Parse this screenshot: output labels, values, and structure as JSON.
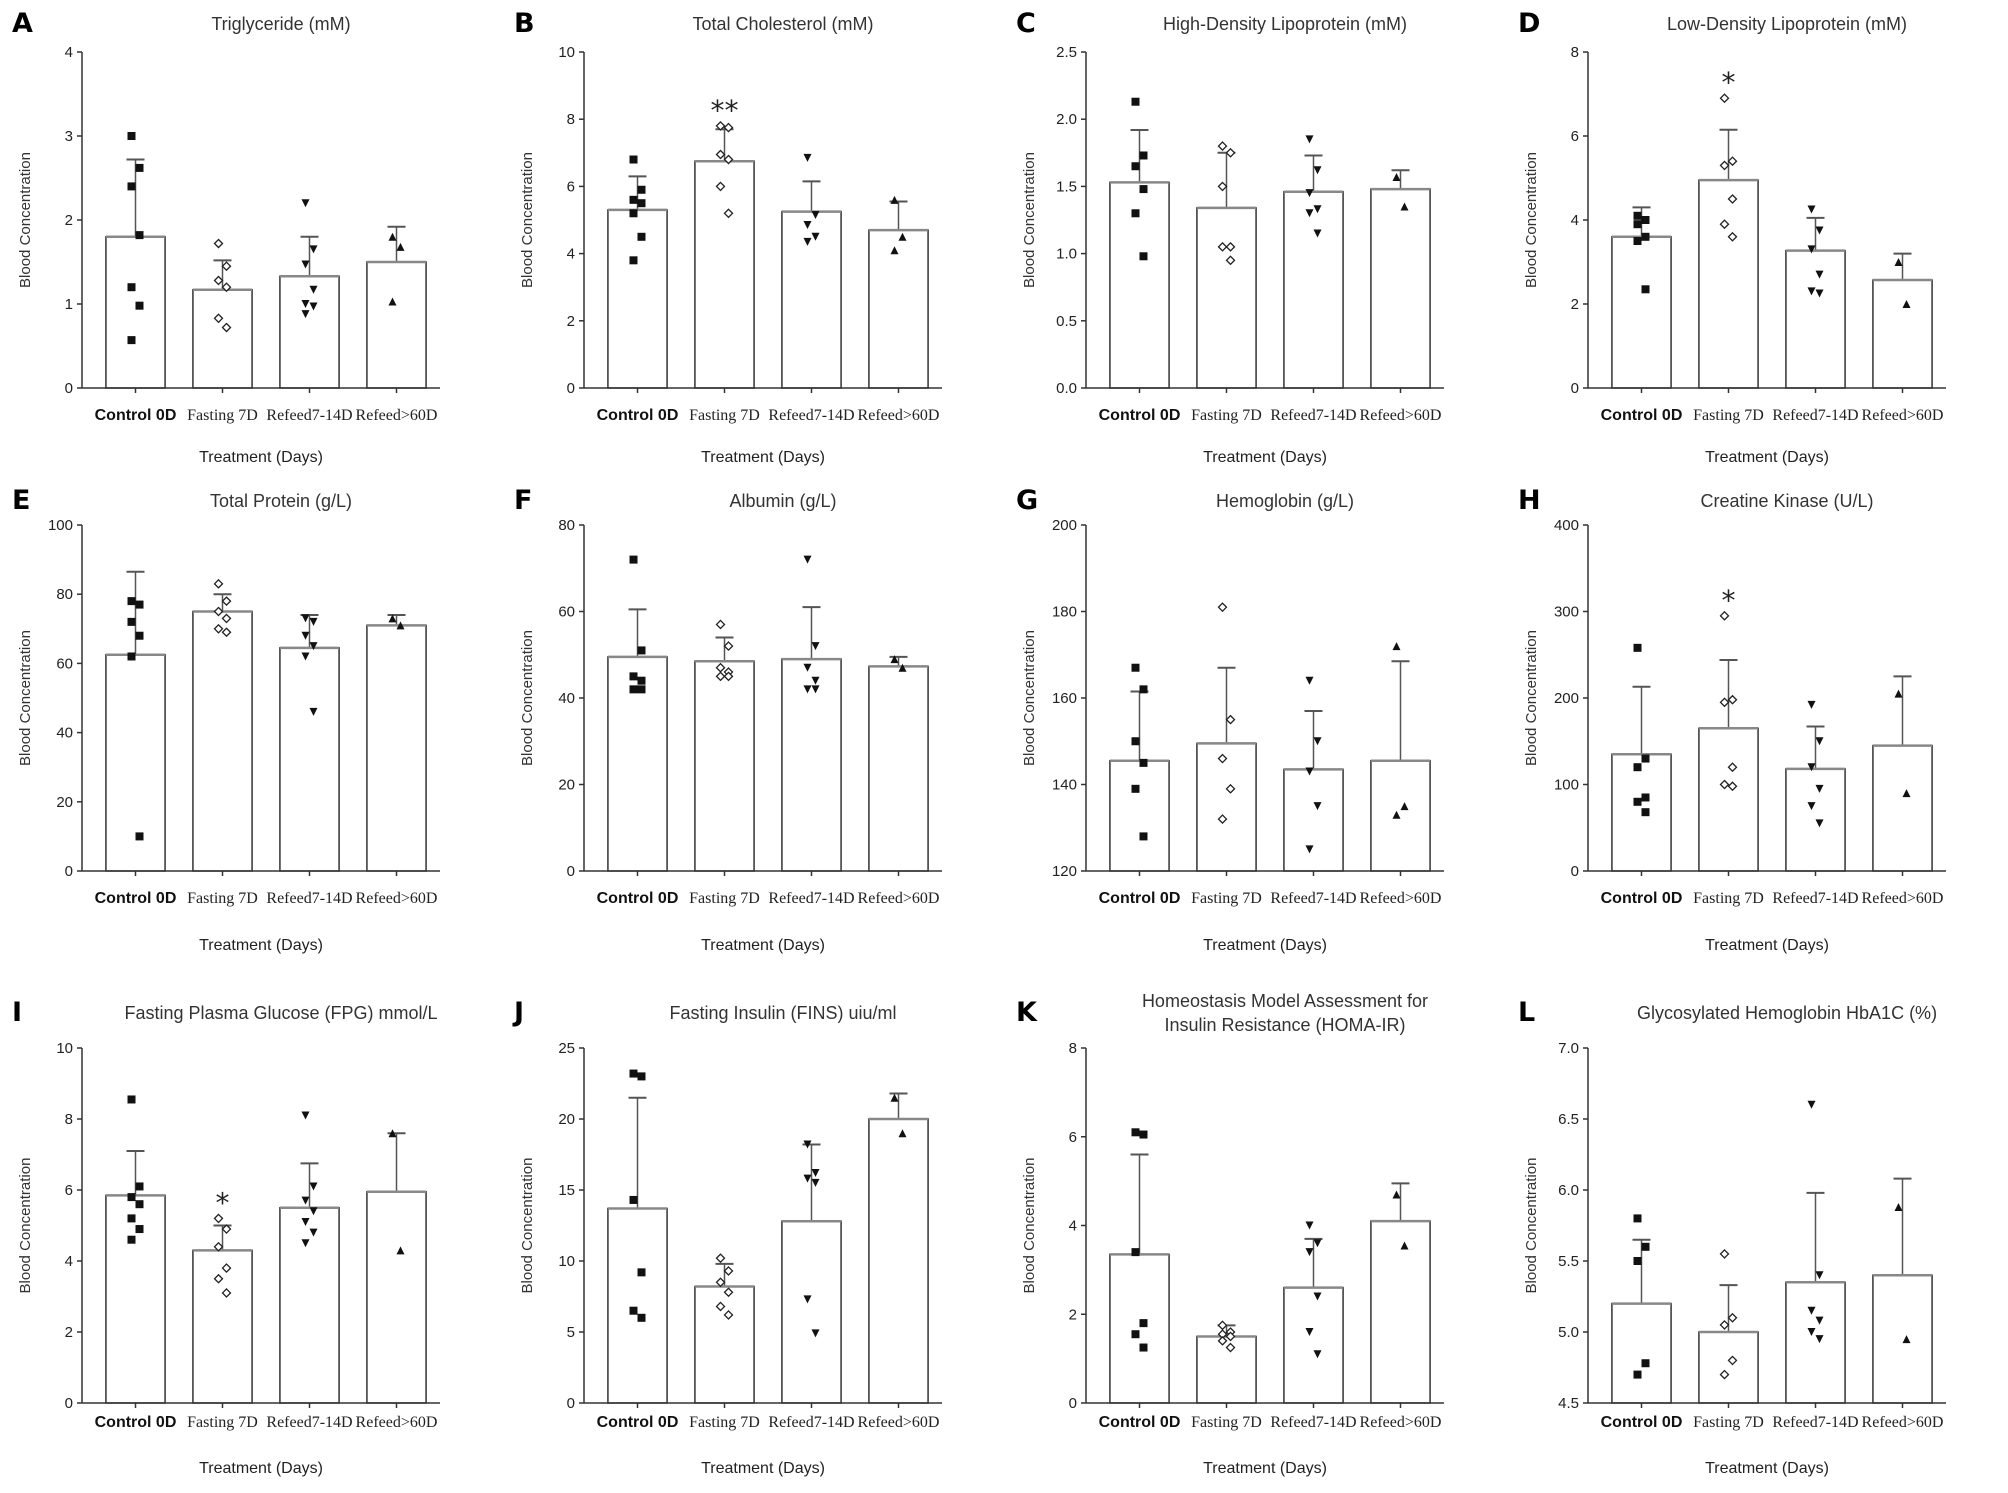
{
  "categories": [
    "Control 0D",
    "Fasting 7D",
    "Refeed7-14D",
    "Refeed>60D"
  ],
  "xlabel": "Treatment (Days)",
  "ylabel": "Blood Concentration",
  "chart_data": [
    {
      "letter": "A",
      "type": "bar",
      "title": [
        "Triglyceride (mM)"
      ],
      "ylim": [
        0,
        4
      ],
      "ticks": [
        "0",
        "1",
        "2",
        "3",
        "4"
      ],
      "means": [
        1.8,
        1.17,
        1.33,
        1.5
      ],
      "err_upper": [
        2.72,
        1.52,
        1.8,
        1.92
      ],
      "sig": [
        "",
        "",
        "",
        ""
      ],
      "points": [
        [
          3.0,
          2.62,
          2.4,
          1.82,
          1.2,
          0.98,
          0.57
        ],
        [
          1.72,
          1.45,
          1.28,
          1.2,
          0.83,
          0.72
        ],
        [
          2.2,
          1.65,
          1.47,
          1.17,
          1.0,
          0.97,
          0.88
        ],
        [
          1.8,
          1.68,
          1.03
        ]
      ]
    },
    {
      "letter": "B",
      "type": "bar",
      "title": [
        "Total Cholesterol (mM)"
      ],
      "ylim": [
        0,
        10
      ],
      "ticks": [
        "0",
        "2",
        "4",
        "6",
        "8",
        "10"
      ],
      "means": [
        5.3,
        6.75,
        5.25,
        4.7
      ],
      "err_upper": [
        6.3,
        7.7,
        6.15,
        5.55
      ],
      "sig": [
        "",
        "**",
        "",
        ""
      ],
      "points": [
        [
          6.8,
          5.9,
          5.6,
          5.5,
          5.2,
          4.5,
          3.8
        ],
        [
          7.8,
          7.75,
          6.95,
          6.8,
          6.0,
          5.2
        ],
        [
          6.85,
          5.15,
          4.85,
          4.5,
          4.35
        ],
        [
          5.6,
          4.5,
          4.1
        ]
      ]
    },
    {
      "letter": "C",
      "type": "bar",
      "title": [
        "High-Density Lipoprotein (mM)"
      ],
      "ylim": [
        0,
        2.5
      ],
      "ticks": [
        "0.0",
        "0.5",
        "1.0",
        "1.5",
        "2.0",
        "2.5"
      ],
      "means": [
        1.53,
        1.34,
        1.46,
        1.48
      ],
      "err_upper": [
        1.92,
        1.75,
        1.73,
        1.62
      ],
      "sig": [
        "",
        "",
        "",
        ""
      ],
      "points": [
        [
          2.13,
          1.73,
          1.65,
          1.48,
          1.3,
          0.98
        ],
        [
          1.8,
          1.75,
          1.5,
          1.05,
          1.05,
          0.95
        ],
        [
          1.85,
          1.62,
          1.45,
          1.33,
          1.3,
          1.15
        ],
        [
          1.57,
          1.35
        ]
      ]
    },
    {
      "letter": "D",
      "type": "bar",
      "title": [
        "Low-Density Lipoprotein (mM)"
      ],
      "ylim": [
        0,
        8
      ],
      "ticks": [
        "0",
        "2",
        "4",
        "6",
        "8"
      ],
      "means": [
        3.6,
        4.95,
        3.27,
        2.57
      ],
      "err_upper": [
        4.3,
        6.15,
        4.05,
        3.2
      ],
      "sig": [
        "",
        "*",
        "",
        ""
      ],
      "points": [
        [
          4.1,
          4.0,
          3.9,
          3.6,
          3.5,
          2.35
        ],
        [
          6.9,
          5.4,
          5.3,
          4.5,
          3.9,
          3.6
        ],
        [
          4.25,
          3.75,
          3.3,
          2.7,
          2.3,
          2.25
        ],
        [
          3.0,
          2.0
        ]
      ]
    },
    {
      "letter": "E",
      "type": "bar",
      "title": [
        "Total Protein (g/L)"
      ],
      "ylim": [
        0,
        100
      ],
      "ticks": [
        "0",
        "20",
        "40",
        "60",
        "80",
        "100"
      ],
      "means": [
        62.5,
        75,
        64.5,
        71
      ],
      "err_upper": [
        86.5,
        80,
        74,
        74
      ],
      "sig": [
        "",
        "",
        "",
        ""
      ],
      "points": [
        [
          78,
          77,
          72,
          68,
          62,
          10
        ],
        [
          83,
          78,
          75,
          73,
          70,
          69
        ],
        [
          73,
          72,
          68,
          65,
          62,
          46
        ],
        [
          73,
          71
        ]
      ]
    },
    {
      "letter": "F",
      "type": "bar",
      "title": [
        "Albumin (g/L)"
      ],
      "ylim": [
        0,
        80
      ],
      "ticks": [
        "0",
        "20",
        "40",
        "60",
        "80"
      ],
      "means": [
        49.5,
        48.5,
        49,
        47.3
      ],
      "err_upper": [
        60.5,
        54,
        61,
        49.5
      ],
      "sig": [
        "",
        "",
        "",
        ""
      ],
      "points": [
        [
          72,
          51,
          45,
          44,
          42,
          42
        ],
        [
          57,
          52,
          47,
          46,
          45,
          45
        ],
        [
          72,
          52,
          47,
          44,
          42,
          42
        ],
        [
          49,
          47
        ]
      ]
    },
    {
      "letter": "G",
      "type": "bar",
      "title": [
        "Hemoglobin (g/L)"
      ],
      "ylim": [
        120,
        200
      ],
      "ticks": [
        "120",
        "140",
        "160",
        "180",
        "200"
      ],
      "means": [
        145.5,
        149.5,
        143.5,
        145.5
      ],
      "err_upper": [
        161.5,
        167,
        157,
        168.5
      ],
      "sig": [
        "",
        "",
        "",
        ""
      ],
      "points": [
        [
          167,
          162,
          150,
          145,
          139,
          128
        ],
        [
          181,
          155,
          146,
          139,
          132
        ],
        [
          164,
          150,
          143,
          135,
          125
        ],
        [
          172,
          135,
          133
        ]
      ]
    },
    {
      "letter": "H",
      "type": "bar",
      "title": [
        "Creatine Kinase (U/L)"
      ],
      "ylim": [
        0,
        400
      ],
      "ticks": [
        "0",
        "100",
        "200",
        "300",
        "400"
      ],
      "means": [
        135,
        165,
        118,
        145
      ],
      "err_upper": [
        213,
        244,
        167,
        225
      ],
      "sig": [
        "",
        "*",
        "",
        ""
      ],
      "points": [
        [
          258,
          130,
          120,
          85,
          80,
          68
        ],
        [
          295,
          198,
          195,
          120,
          100,
          98
        ],
        [
          192,
          150,
          120,
          95,
          75,
          55
        ],
        [
          205,
          90
        ]
      ]
    },
    {
      "letter": "I",
      "type": "bar",
      "title": [
        "Fasting Plasma Glucose (FPG) mmol/L"
      ],
      "ylim": [
        0,
        10
      ],
      "ticks": [
        "0",
        "2",
        "4",
        "6",
        "8",
        "10"
      ],
      "means": [
        5.85,
        4.3,
        5.5,
        5.95
      ],
      "err_upper": [
        7.1,
        5.0,
        6.75,
        7.6
      ],
      "sig": [
        "",
        "*",
        "",
        ""
      ],
      "points": [
        [
          8.55,
          6.1,
          5.8,
          5.6,
          5.2,
          4.9,
          4.6
        ],
        [
          5.2,
          4.9,
          4.4,
          3.8,
          3.5,
          3.1
        ],
        [
          8.1,
          6.1,
          5.7,
          5.4,
          5.1,
          4.8,
          4.5
        ],
        [
          7.6,
          4.3
        ]
      ]
    },
    {
      "letter": "J",
      "type": "bar",
      "title": [
        "Fasting Insulin (FINS) uiu/ml"
      ],
      "ylim": [
        0,
        25
      ],
      "ticks": [
        "0",
        "5",
        "10",
        "15",
        "20",
        "25"
      ],
      "means": [
        13.7,
        8.2,
        12.8,
        20
      ],
      "err_upper": [
        21.5,
        9.8,
        18.2,
        21.8
      ],
      "sig": [
        "",
        "",
        "",
        ""
      ],
      "points": [
        [
          23.2,
          23,
          14.3,
          9.2,
          6.5,
          6.0
        ],
        [
          10.2,
          9.3,
          8.5,
          7.8,
          6.8,
          6.2
        ],
        [
          18.2,
          16.2,
          15.8,
          15.5,
          7.3,
          4.9
        ],
        [
          21.5,
          19
        ]
      ]
    },
    {
      "letter": "K",
      "type": "bar",
      "title": [
        "Homeostasis Model Assessment for",
        "Insulin Resistance (HOMA-IR)"
      ],
      "ylim": [
        0,
        8
      ],
      "ticks": [
        "0",
        "2",
        "4",
        "6",
        "8"
      ],
      "means": [
        3.35,
        1.5,
        2.6,
        4.1
      ],
      "err_upper": [
        5.6,
        1.75,
        3.7,
        4.95
      ],
      "sig": [
        "",
        "",
        "",
        ""
      ],
      "points": [
        [
          6.1,
          6.05,
          3.4,
          1.8,
          1.55,
          1.25
        ],
        [
          1.75,
          1.6,
          1.55,
          1.5,
          1.4,
          1.25
        ],
        [
          4.0,
          3.6,
          3.4,
          2.4,
          1.6,
          1.1
        ],
        [
          4.7,
          3.55
        ]
      ]
    },
    {
      "letter": "L",
      "type": "bar",
      "title": [
        "Glycosylated Hemoglobin HbA1C (%)"
      ],
      "ylim": [
        4.5,
        7.0
      ],
      "ticks": [
        "4.5",
        "5.0",
        "5.5",
        "6.0",
        "6.5",
        "7.0"
      ],
      "means": [
        5.2,
        5.0,
        5.35,
        5.4
      ],
      "err_upper": [
        5.65,
        5.33,
        5.98,
        6.08
      ],
      "sig": [
        "",
        "",
        "",
        ""
      ],
      "points": [
        [
          5.8,
          5.6,
          5.5,
          4.78,
          4.7
        ],
        [
          5.55,
          5.1,
          5.05,
          4.8,
          4.7
        ],
        [
          6.6,
          5.4,
          5.15,
          5.08,
          5.0,
          4.95
        ],
        [
          5.88,
          4.95
        ]
      ]
    }
  ]
}
